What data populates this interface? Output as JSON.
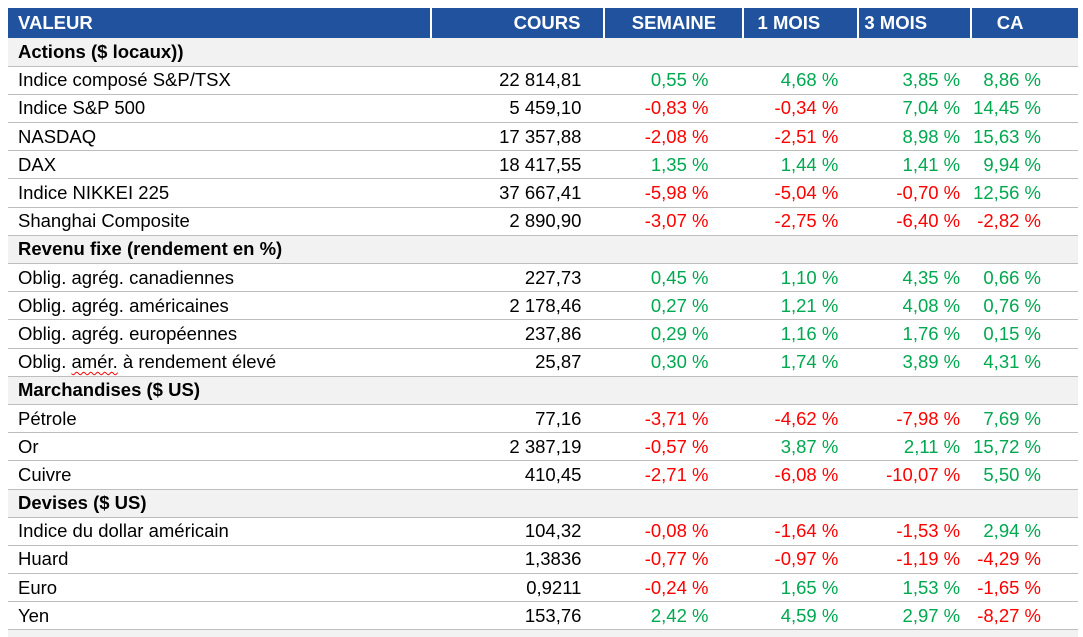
{
  "colors": {
    "header_bg": "#21529E",
    "header_text": "#FFFFFF",
    "section_bg": "#F2F2F2",
    "row_border": "#BDBDBD",
    "positive": "#00A850",
    "negative": "#FF0000",
    "body_text": "#000000"
  },
  "chart_data": {
    "type": "table",
    "columns": [
      "VALEUR",
      "COURS",
      "SEMAINE",
      "1 MOIS",
      "3 MOIS",
      "CA"
    ],
    "sections": [
      {
        "title": "Actions ($ locaux))",
        "rows": [
          {
            "label": "Indice composé S&P/TSX",
            "cours": "22 814,81",
            "semaine": "0,55 %",
            "mois1": "4,68 %",
            "mois3": "3,85 %",
            "ca": "8,86 %"
          },
          {
            "label": "Indice S&P 500",
            "cours": "5 459,10",
            "semaine": "-0,83 %",
            "mois1": "-0,34 %",
            "mois3": "7,04 %",
            "ca": "14,45 %"
          },
          {
            "label": "NASDAQ",
            "cours": "17 357,88",
            "semaine": "-2,08 %",
            "mois1": "-2,51 %",
            "mois3": "8,98 %",
            "ca": "15,63 %"
          },
          {
            "label": "DAX",
            "cours": "18 417,55",
            "semaine": "1,35 %",
            "mois1": "1,44 %",
            "mois3": "1,41 %",
            "ca": "9,94 %"
          },
          {
            "label": "Indice NIKKEI 225",
            "cours": "37 667,41",
            "semaine": "-5,98 %",
            "mois1": "-5,04 %",
            "mois3": "-0,70 %",
            "ca": "12,56 %"
          },
          {
            "label": "Shanghai Composite",
            "cours": "2 890,90",
            "semaine": "-3,07 %",
            "mois1": "-2,75 %",
            "mois3": "-6,40 %",
            "ca": "-2,82 %"
          }
        ]
      },
      {
        "title": "Revenu fixe (rendement en %)",
        "rows": [
          {
            "label": "Oblig. agrég. canadiennes",
            "cours": "227,73",
            "semaine": "0,45 %",
            "mois1": "1,10 %",
            "mois3": "4,35 %",
            "ca": "0,66 %"
          },
          {
            "label": "Oblig. agrég. américaines",
            "cours": "2 178,46",
            "semaine": "0,27 %",
            "mois1": "1,21 %",
            "mois3": "4,08 %",
            "ca": "0,76 %"
          },
          {
            "label": "Oblig. agrég. européennes",
            "cours": "237,86",
            "semaine": "0,29 %",
            "mois1": "1,16 %",
            "mois3": "1,76 %",
            "ca": "0,15 %"
          },
          {
            "label": "Oblig. amér. à rendement élevé",
            "label_parts": [
              "Oblig. ",
              "amér.",
              " à rendement élevé"
            ],
            "cours": "25,87",
            "semaine": "0,30 %",
            "mois1": "1,74 %",
            "mois3": "3,89 %",
            "ca": "4,31 %"
          }
        ]
      },
      {
        "title": "Marchandises ($ US)",
        "rows": [
          {
            "label": "Pétrole",
            "cours": "77,16",
            "semaine": "-3,71 %",
            "mois1": "-4,62 %",
            "mois3": "-7,98 %",
            "ca": "7,69 %"
          },
          {
            "label": "Or",
            "cours": "2 387,19",
            "semaine": "-0,57 %",
            "mois1": "3,87 %",
            "mois3": "2,11 %",
            "ca": "15,72 %"
          },
          {
            "label": "Cuivre",
            "cours": "410,45",
            "semaine": "-2,71 %",
            "mois1": "-6,08 %",
            "mois3": "-10,07 %",
            "ca": "5,50 %"
          }
        ]
      },
      {
        "title": "Devises ($ US)",
        "rows": [
          {
            "label": "Indice du dollar américain",
            "cours": "104,32",
            "semaine": "-0,08 %",
            "mois1": "-1,64 %",
            "mois3": "-1,53 %",
            "ca": "2,94 %"
          },
          {
            "label": "Huard",
            "cours": "1,3836",
            "semaine": "-0,77 %",
            "mois1": "-0,97 %",
            "mois3": "-1,19 %",
            "ca": "-4,29 %"
          },
          {
            "label": "Euro",
            "cours": "0,9211",
            "semaine": "-0,24 %",
            "mois1": "1,65 %",
            "mois3": "1,53 %",
            "ca": "-1,65 %"
          },
          {
            "label": "Yen",
            "cours": "153,76",
            "semaine": "2,42 %",
            "mois1": "4,59 %",
            "mois3": "2,97 %",
            "ca": "-8,27 %"
          }
        ]
      }
    ]
  }
}
